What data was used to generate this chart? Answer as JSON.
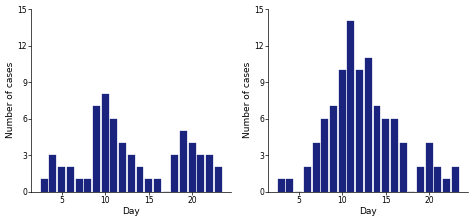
{
  "left": {
    "days": [
      3,
      4,
      5,
      6,
      7,
      8,
      9,
      10,
      11,
      12,
      13,
      14,
      15,
      16,
      17,
      18,
      19,
      20,
      21,
      22,
      23
    ],
    "values": [
      1,
      3,
      2,
      2,
      1,
      1,
      7,
      8,
      6,
      4,
      3,
      2,
      1,
      1,
      0,
      3,
      5,
      4,
      3,
      3,
      2
    ],
    "ylabel": "Number of cases",
    "xlabel": "Day",
    "ylim": [
      0,
      15
    ],
    "yticks": [
      0,
      3,
      6,
      9,
      12,
      15
    ],
    "xticks": [
      5,
      10,
      15,
      20
    ],
    "xlim": [
      1.5,
      24.5
    ]
  },
  "right": {
    "days": [
      3,
      4,
      5,
      6,
      7,
      8,
      9,
      10,
      11,
      12,
      13,
      14,
      15,
      16,
      17,
      18,
      19,
      20,
      21,
      22,
      23
    ],
    "values": [
      1,
      1,
      0,
      2,
      4,
      6,
      7,
      10,
      14,
      10,
      11,
      7,
      6,
      6,
      4,
      0,
      2,
      4,
      2,
      1,
      2
    ],
    "ylabel": "Number of cases",
    "xlabel": "Day",
    "ylim": [
      0,
      15
    ],
    "yticks": [
      0,
      3,
      6,
      9,
      12,
      15
    ],
    "xticks": [
      5,
      10,
      15,
      20
    ],
    "xlim": [
      1.5,
      24.5
    ]
  },
  "bar_color": "#1a237e",
  "bar_edge_color": "#1a237e",
  "background_color": "#ffffff",
  "tick_fontsize": 5.5,
  "label_fontsize": 6.5
}
